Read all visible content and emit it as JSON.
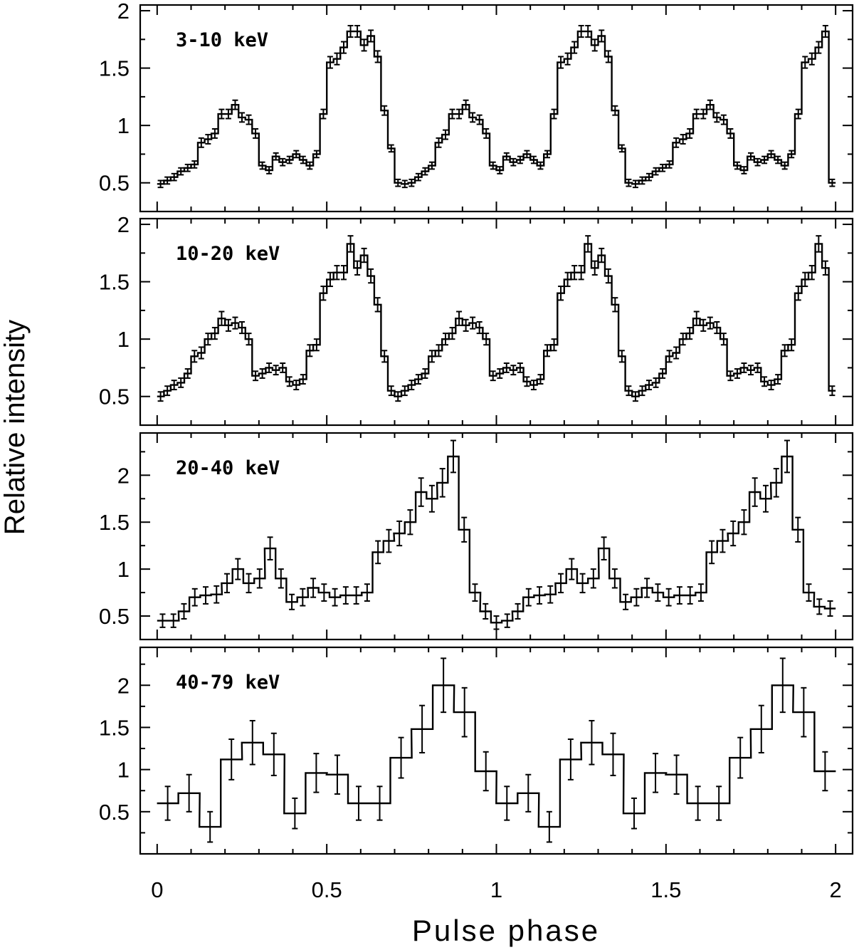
{
  "figure": {
    "ylabel": "Relative intensity",
    "xlabel": "Pulse phase"
  },
  "chart_data": [
    {
      "type": "line",
      "title": "3-10 keV",
      "xlabel": "Pulse phase",
      "ylabel": "Relative intensity",
      "xlim": [
        -0.05,
        2.05
      ],
      "ylim": [
        0.25,
        2.05
      ],
      "x_ticks": [
        0,
        0.5,
        1,
        1.5,
        2
      ],
      "y_ticks": [
        0.5,
        1,
        1.5,
        2
      ],
      "y_tick_labels": [
        "0.5",
        "1",
        "1.5",
        "2"
      ],
      "series": [
        {
          "x": [
            0.01,
            0.03,
            0.05,
            0.07,
            0.09,
            0.11,
            0.13,
            0.15,
            0.17,
            0.19,
            0.21,
            0.23,
            0.25,
            0.27,
            0.29,
            0.31,
            0.33,
            0.35,
            0.37,
            0.39,
            0.41,
            0.43,
            0.45,
            0.47,
            0.49,
            0.51,
            0.53,
            0.55,
            0.57,
            0.59,
            0.61,
            0.63,
            0.65,
            0.67,
            0.69,
            0.71,
            0.73,
            0.75,
            0.77,
            0.79,
            0.81,
            0.83,
            0.85,
            0.87,
            0.89,
            0.91,
            0.93,
            0.95,
            0.97,
            0.99,
            1.01,
            1.03,
            1.05,
            1.07,
            1.09,
            1.11,
            1.13,
            1.15,
            1.17,
            1.19,
            1.21,
            1.23,
            1.25,
            1.27,
            1.29,
            1.31,
            1.33,
            1.35,
            1.37,
            1.39,
            1.41,
            1.43,
            1.45,
            1.47,
            1.49,
            1.51,
            1.53,
            1.55,
            1.57,
            1.59,
            1.61,
            1.63,
            1.65,
            1.67,
            1.69,
            1.71,
            1.73,
            1.75,
            1.77,
            1.79,
            1.81,
            1.83,
            1.85,
            1.87,
            1.89,
            1.91,
            1.93,
            1.95,
            1.97,
            1.99
          ],
          "y": [
            0.49,
            0.52,
            0.55,
            0.6,
            0.63,
            0.66,
            0.85,
            0.88,
            0.93,
            1.1,
            1.1,
            1.18,
            1.07,
            1.05,
            0.93,
            0.65,
            0.61,
            0.73,
            0.68,
            0.7,
            0.75,
            0.7,
            0.65,
            0.75,
            1.1,
            1.55,
            1.58,
            1.68,
            1.82,
            1.82,
            1.7,
            1.78,
            1.6,
            1.13,
            0.8,
            0.5,
            0.49,
            0.5,
            0.55,
            0.6,
            0.65,
            0.85,
            0.92,
            1.1,
            1.1,
            1.18,
            1.07,
            1.05,
            0.93,
            0.65,
            0.61,
            0.73,
            0.68,
            0.7,
            0.75,
            0.7,
            0.65,
            0.75,
            1.1,
            1.55,
            1.58,
            1.68,
            1.82,
            1.82,
            1.7,
            1.78,
            1.6,
            1.13,
            0.8,
            0.5,
            0.49,
            0.52,
            0.55,
            0.6,
            0.63,
            0.66,
            0.85,
            0.88,
            0.93,
            1.1,
            1.1,
            1.18,
            1.07,
            1.05,
            0.93,
            0.65,
            0.61,
            0.73,
            0.68,
            0.7,
            0.75,
            0.7,
            0.65,
            0.75,
            1.1,
            1.55,
            1.58,
            1.68,
            1.82,
            0.5
          ],
          "err": [
            0.03,
            0.03,
            0.03,
            0.03,
            0.03,
            0.03,
            0.04,
            0.04,
            0.04,
            0.04,
            0.04,
            0.04,
            0.04,
            0.04,
            0.04,
            0.03,
            0.03,
            0.03,
            0.03,
            0.03,
            0.03,
            0.03,
            0.03,
            0.03,
            0.04,
            0.05,
            0.05,
            0.05,
            0.05,
            0.05,
            0.05,
            0.05,
            0.05,
            0.04,
            0.03,
            0.03,
            0.03,
            0.03,
            0.03,
            0.03,
            0.03,
            0.04,
            0.04,
            0.04,
            0.04,
            0.04,
            0.04,
            0.04,
            0.04,
            0.03,
            0.03,
            0.03,
            0.03,
            0.03,
            0.03,
            0.03,
            0.03,
            0.03,
            0.04,
            0.05,
            0.05,
            0.05,
            0.05,
            0.05,
            0.05,
            0.05,
            0.05,
            0.04,
            0.03,
            0.03,
            0.03,
            0.03,
            0.03,
            0.03,
            0.03,
            0.03,
            0.04,
            0.04,
            0.04,
            0.04,
            0.04,
            0.04,
            0.04,
            0.04,
            0.04,
            0.03,
            0.03,
            0.03,
            0.03,
            0.03,
            0.03,
            0.03,
            0.03,
            0.03,
            0.04,
            0.05,
            0.05,
            0.05,
            0.05,
            0.03
          ]
        }
      ]
    },
    {
      "type": "line",
      "title": "10-20 keV",
      "xlim": [
        -0.05,
        2.05
      ],
      "ylim": [
        0.25,
        2.05
      ],
      "x_ticks": [
        0,
        0.5,
        1,
        1.5,
        2
      ],
      "y_ticks": [
        0.5,
        1,
        1.5,
        2
      ],
      "y_tick_labels": [
        "0.5",
        "1",
        "1.5",
        "2"
      ],
      "series": [
        {
          "x": [
            0.01,
            0.03,
            0.05,
            0.07,
            0.09,
            0.11,
            0.13,
            0.15,
            0.17,
            0.19,
            0.21,
            0.23,
            0.25,
            0.27,
            0.29,
            0.31,
            0.33,
            0.35,
            0.37,
            0.39,
            0.41,
            0.43,
            0.45,
            0.47,
            0.49,
            0.51,
            0.53,
            0.55,
            0.57,
            0.59,
            0.61,
            0.63,
            0.65,
            0.67,
            0.69,
            0.71,
            0.73,
            0.75,
            0.77,
            0.79,
            0.81,
            0.83,
            0.85,
            0.87,
            0.89,
            0.91,
            0.93,
            0.95,
            0.97,
            0.99,
            1.01,
            1.03,
            1.05,
            1.07,
            1.09,
            1.11,
            1.13,
            1.15,
            1.17,
            1.19,
            1.21,
            1.23,
            1.25,
            1.27,
            1.29,
            1.31,
            1.33,
            1.35,
            1.37,
            1.39,
            1.41,
            1.43,
            1.45,
            1.47,
            1.49,
            1.51,
            1.53,
            1.55,
            1.57,
            1.59,
            1.61,
            1.63,
            1.65,
            1.67,
            1.69,
            1.71,
            1.73,
            1.75,
            1.77,
            1.79,
            1.81,
            1.83,
            1.85,
            1.87,
            1.89,
            1.91,
            1.93,
            1.95,
            1.97,
            1.99
          ],
          "y": [
            0.5,
            0.55,
            0.6,
            0.62,
            0.7,
            0.85,
            0.88,
            1.0,
            1.05,
            1.18,
            1.12,
            1.14,
            1.1,
            1.0,
            0.68,
            0.7,
            0.75,
            0.73,
            0.75,
            0.63,
            0.6,
            0.65,
            0.9,
            0.95,
            1.4,
            1.52,
            1.58,
            1.58,
            1.83,
            1.62,
            1.73,
            1.55,
            1.3,
            0.85,
            0.55,
            0.5,
            0.55,
            0.6,
            0.65,
            0.7,
            0.85,
            0.9,
            1.0,
            1.05,
            1.18,
            1.12,
            1.14,
            1.1,
            1.0,
            0.68,
            0.7,
            0.75,
            0.73,
            0.75,
            0.63,
            0.6,
            0.65,
            0.9,
            0.95,
            1.4,
            1.52,
            1.58,
            1.58,
            1.83,
            1.62,
            1.73,
            1.55,
            1.3,
            0.85,
            0.55,
            0.5,
            0.55,
            0.6,
            0.62,
            0.7,
            0.85,
            0.88,
            1.0,
            1.05,
            1.18,
            1.12,
            1.14,
            1.1,
            1.0,
            0.68,
            0.7,
            0.75,
            0.73,
            0.75,
            0.63,
            0.6,
            0.65,
            0.9,
            0.95,
            1.4,
            1.52,
            1.58,
            1.83,
            1.62,
            0.55
          ],
          "err": [
            0.04,
            0.04,
            0.04,
            0.04,
            0.04,
            0.05,
            0.05,
            0.05,
            0.05,
            0.06,
            0.05,
            0.05,
            0.05,
            0.05,
            0.04,
            0.04,
            0.04,
            0.04,
            0.04,
            0.04,
            0.04,
            0.04,
            0.05,
            0.05,
            0.06,
            0.06,
            0.06,
            0.06,
            0.07,
            0.06,
            0.06,
            0.06,
            0.06,
            0.05,
            0.04,
            0.04,
            0.04,
            0.04,
            0.04,
            0.04,
            0.05,
            0.05,
            0.05,
            0.05,
            0.06,
            0.05,
            0.05,
            0.05,
            0.05,
            0.04,
            0.04,
            0.04,
            0.04,
            0.04,
            0.04,
            0.04,
            0.04,
            0.05,
            0.05,
            0.06,
            0.06,
            0.06,
            0.06,
            0.07,
            0.06,
            0.06,
            0.06,
            0.06,
            0.05,
            0.04,
            0.04,
            0.04,
            0.04,
            0.04,
            0.04,
            0.05,
            0.05,
            0.05,
            0.05,
            0.06,
            0.05,
            0.05,
            0.05,
            0.05,
            0.04,
            0.04,
            0.04,
            0.04,
            0.04,
            0.04,
            0.04,
            0.04,
            0.05,
            0.05,
            0.06,
            0.06,
            0.06,
            0.07,
            0.06,
            0.04
          ]
        }
      ]
    },
    {
      "type": "line",
      "title": "20-40 keV",
      "xlim": [
        -0.05,
        2.05
      ],
      "ylim": [
        0.25,
        2.45
      ],
      "x_ticks": [
        0,
        0.5,
        1,
        1.5,
        2
      ],
      "y_ticks": [
        0.5,
        1,
        1.5,
        2
      ],
      "y_tick_labels": [
        "0.5",
        "1",
        "1.5",
        "2"
      ],
      "series": [
        {
          "x": [
            0.016,
            0.048,
            0.079,
            0.111,
            0.143,
            0.175,
            0.206,
            0.238,
            0.27,
            0.302,
            0.333,
            0.365,
            0.397,
            0.429,
            0.46,
            0.492,
            0.524,
            0.556,
            0.587,
            0.619,
            0.651,
            0.683,
            0.714,
            0.746,
            0.778,
            0.81,
            0.841,
            0.873,
            0.905,
            0.937,
            0.968,
            1.0,
            1.032,
            1.063,
            1.095,
            1.127,
            1.159,
            1.19,
            1.222,
            1.254,
            1.286,
            1.317,
            1.349,
            1.381,
            1.413,
            1.444,
            1.476,
            1.508,
            1.54,
            1.571,
            1.603,
            1.635,
            1.667,
            1.698,
            1.73,
            1.762,
            1.794,
            1.825,
            1.857,
            1.889,
            1.921,
            1.952,
            1.984
          ],
          "y": [
            0.45,
            0.45,
            0.55,
            0.7,
            0.72,
            0.73,
            0.85,
            1.0,
            0.85,
            0.9,
            1.22,
            0.9,
            0.65,
            0.7,
            0.8,
            0.75,
            0.7,
            0.72,
            0.72,
            0.75,
            1.18,
            1.3,
            1.38,
            1.5,
            1.82,
            1.75,
            1.92,
            2.2,
            1.42,
            0.75,
            0.55,
            0.43,
            0.45,
            0.55,
            0.7,
            0.72,
            0.73,
            0.85,
            1.0,
            0.85,
            0.9,
            1.22,
            0.9,
            0.65,
            0.7,
            0.8,
            0.75,
            0.7,
            0.72,
            0.72,
            0.75,
            1.18,
            1.3,
            1.38,
            1.5,
            1.82,
            1.75,
            1.92,
            2.2,
            1.42,
            0.75,
            0.6,
            0.58
          ],
          "err": [
            0.07,
            0.07,
            0.08,
            0.09,
            0.09,
            0.09,
            0.1,
            0.11,
            0.1,
            0.1,
            0.12,
            0.1,
            0.08,
            0.09,
            0.1,
            0.09,
            0.09,
            0.09,
            0.09,
            0.09,
            0.12,
            0.12,
            0.13,
            0.13,
            0.15,
            0.14,
            0.15,
            0.17,
            0.13,
            0.09,
            0.08,
            0.07,
            0.07,
            0.08,
            0.09,
            0.09,
            0.09,
            0.1,
            0.11,
            0.1,
            0.1,
            0.12,
            0.1,
            0.08,
            0.09,
            0.1,
            0.09,
            0.09,
            0.09,
            0.09,
            0.09,
            0.12,
            0.12,
            0.13,
            0.13,
            0.15,
            0.14,
            0.15,
            0.17,
            0.13,
            0.09,
            0.08,
            0.08
          ]
        }
      ]
    },
    {
      "type": "line",
      "title": "40-79 keV",
      "xlim": [
        -0.05,
        2.05
      ],
      "ylim": [
        0.0,
        2.45
      ],
      "x_ticks": [
        0,
        0.5,
        1,
        1.5,
        2
      ],
      "y_ticks": [
        0.5,
        1,
        1.5,
        2
      ],
      "y_tick_labels": [
        "0.5",
        "1",
        "1.5",
        "2"
      ],
      "series": [
        {
          "x": [
            0.031,
            0.094,
            0.156,
            0.219,
            0.281,
            0.344,
            0.406,
            0.469,
            0.531,
            0.594,
            0.656,
            0.719,
            0.781,
            0.844,
            0.906,
            0.969,
            1.031,
            1.094,
            1.156,
            1.219,
            1.281,
            1.344,
            1.406,
            1.469,
            1.531,
            1.594,
            1.656,
            1.719,
            1.781,
            1.844,
            1.906,
            1.969
          ],
          "y": [
            0.6,
            0.72,
            0.32,
            1.12,
            1.32,
            1.18,
            0.48,
            0.96,
            0.94,
            0.6,
            0.6,
            1.14,
            1.48,
            2.0,
            1.68,
            0.98,
            0.6,
            0.72,
            0.32,
            1.12,
            1.32,
            1.18,
            0.48,
            0.96,
            0.94,
            0.6,
            0.6,
            1.14,
            1.48,
            2.0,
            1.68,
            0.98
          ],
          "err": [
            0.2,
            0.22,
            0.18,
            0.24,
            0.26,
            0.25,
            0.18,
            0.23,
            0.23,
            0.2,
            0.2,
            0.24,
            0.28,
            0.32,
            0.29,
            0.23,
            0.2,
            0.22,
            0.18,
            0.24,
            0.26,
            0.25,
            0.18,
            0.23,
            0.23,
            0.2,
            0.2,
            0.24,
            0.28,
            0.32,
            0.29,
            0.23
          ]
        }
      ]
    }
  ]
}
